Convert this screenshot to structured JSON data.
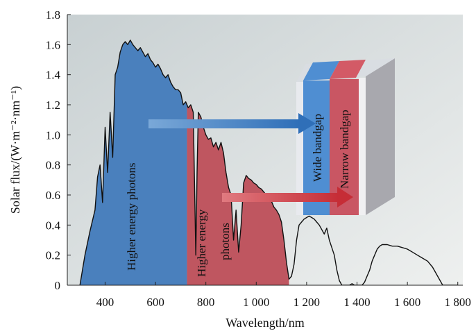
{
  "chart_data": {
    "type": "area",
    "xlabel": "Wavelength/nm",
    "ylabel": "Solar flux/(W·m⁻²·nm⁻¹)",
    "xlim": [
      250,
      1820
    ],
    "ylim": [
      0,
      1.8
    ],
    "x_ticks": [
      400,
      600,
      800,
      1000,
      1200,
      1400,
      1600,
      1800
    ],
    "x_tick_labels": [
      "400",
      "600",
      "800",
      "1 000",
      "1 200",
      "1 400",
      "1 600",
      "1 800"
    ],
    "y_ticks": [
      0,
      0.2,
      0.4,
      0.6,
      0.8,
      1.0,
      1.2,
      1.4,
      1.6,
      1.8
    ],
    "y_tick_labels": [
      "0",
      "0.2",
      "0.4",
      "0.6",
      "0.8",
      "1.0",
      "1.2",
      "1.4",
      "1.6",
      "1.8"
    ],
    "grid": false,
    "series": [
      {
        "x": [
          300,
          320,
          340,
          360,
          370,
          380,
          390,
          400,
          410,
          420,
          430,
          440,
          450,
          460,
          470,
          480,
          490,
          500,
          510,
          520,
          530,
          540,
          550,
          560,
          570,
          580,
          590,
          600,
          610,
          620,
          630,
          640,
          650,
          660,
          670,
          680,
          690,
          700,
          710,
          720,
          730,
          740,
          750,
          760,
          765,
          770,
          780,
          790,
          800,
          810,
          820,
          830,
          840,
          850,
          860,
          870,
          880,
          890,
          900,
          910,
          920,
          930,
          940,
          950,
          960,
          970,
          980,
          990,
          1000,
          1010,
          1020,
          1030,
          1040,
          1050,
          1060,
          1070,
          1080,
          1090,
          1100,
          1110,
          1120,
          1130,
          1140,
          1150,
          1160,
          1170,
          1180,
          1190,
          1200,
          1210,
          1220,
          1230,
          1240,
          1250,
          1260,
          1270,
          1280,
          1290,
          1300,
          1310,
          1320,
          1330,
          1340,
          1350,
          1360,
          1370,
          1380,
          1390,
          1400,
          1410,
          1420,
          1430,
          1440,
          1450,
          1460,
          1470,
          1480,
          1490,
          1500,
          1520,
          1540,
          1560,
          1580,
          1600,
          1620,
          1640,
          1660,
          1680,
          1700,
          1720,
          1740,
          1760,
          1780,
          1800
        ],
        "values": [
          0,
          0.2,
          0.36,
          0.5,
          0.72,
          0.8,
          0.55,
          1.05,
          0.75,
          1.15,
          0.85,
          1.4,
          1.45,
          1.55,
          1.6,
          1.62,
          1.6,
          1.63,
          1.6,
          1.58,
          1.56,
          1.58,
          1.55,
          1.52,
          1.54,
          1.5,
          1.48,
          1.45,
          1.47,
          1.44,
          1.4,
          1.38,
          1.4,
          1.35,
          1.32,
          1.3,
          1.3,
          1.28,
          1.2,
          1.22,
          1.18,
          1.2,
          1.15,
          0.2,
          0.75,
          1.15,
          1.12,
          1.05,
          1.0,
          0.97,
          0.98,
          0.92,
          0.95,
          0.9,
          0.95,
          0.88,
          0.75,
          0.65,
          0.6,
          0.3,
          0.5,
          0.22,
          0.4,
          0.68,
          0.73,
          0.71,
          0.7,
          0.68,
          0.67,
          0.65,
          0.64,
          0.62,
          0.6,
          0.58,
          0.56,
          0.52,
          0.5,
          0.47,
          0.42,
          0.3,
          0.15,
          0.04,
          0.06,
          0.14,
          0.3,
          0.4,
          0.42,
          0.44,
          0.45,
          0.46,
          0.45,
          0.44,
          0.42,
          0.4,
          0.37,
          0.34,
          0.38,
          0.3,
          0.25,
          0.2,
          0.1,
          0.03,
          0.0,
          0.0,
          0.0,
          0.0,
          0.01,
          0.0,
          0.0,
          0.0,
          0.0,
          0.02,
          0.06,
          0.1,
          0.16,
          0.2,
          0.24,
          0.26,
          0.27,
          0.27,
          0.26,
          0.26,
          0.25,
          0.24,
          0.22,
          0.2,
          0.18,
          0.16,
          0.12,
          0.06,
          0.0,
          0.0,
          0.0,
          0.0
        ]
      }
    ],
    "regions": [
      {
        "from": 300,
        "to": 725,
        "color": "#4a80bd",
        "label": "Higher energy photons"
      },
      {
        "from": 725,
        "to": 1130,
        "color": "#bf5660",
        "label": "Higher energy photons"
      }
    ],
    "annotations": {
      "wide": "Wide bandgap",
      "narrow": "Narrow bandgap"
    },
    "colors": {
      "blue_region": "#4a80bd",
      "red_region": "#bf5660",
      "blue_arrow": "#2f6fb8",
      "red_arrow": "#c62d36",
      "curve": "#111111"
    }
  }
}
